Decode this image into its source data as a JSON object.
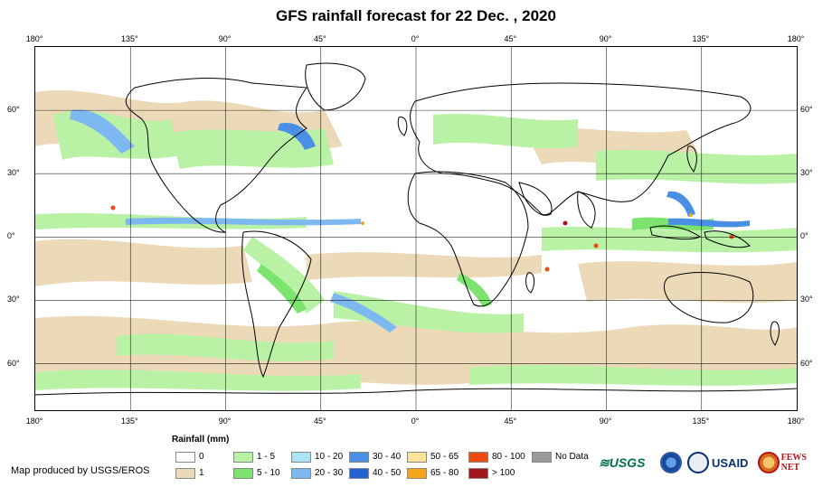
{
  "title": "GFS rainfall forecast for 22 Dec. , 2020",
  "map": {
    "longitude_labels": [
      "180°",
      "135°",
      "90°",
      "45°",
      "0°",
      "45°",
      "90°",
      "135°",
      "180°"
    ],
    "latitude_labels": [
      "60°",
      "30°",
      "0°",
      "30°",
      "60°"
    ],
    "longitude_values": [
      -180,
      -135,
      -90,
      -45,
      0,
      45,
      90,
      135,
      180
    ],
    "latitude_values": [
      60,
      30,
      0,
      -30,
      -60
    ],
    "lon_range": [
      -180,
      180
    ],
    "lat_range": [
      -82,
      90
    ],
    "grid": true
  },
  "legend": {
    "title": "Rainfall (mm)",
    "items": [
      {
        "label": "0",
        "color": "#ffffff"
      },
      {
        "label": "1",
        "color": "#ecd9b8"
      },
      {
        "label": "1 - 5",
        "color": "#b9f2a4"
      },
      {
        "label": "5 - 10",
        "color": "#7de36f"
      },
      {
        "label": "10 - 20",
        "color": "#aee3f5"
      },
      {
        "label": "20 - 30",
        "color": "#7db8f0"
      },
      {
        "label": "30 - 40",
        "color": "#4a8fe6"
      },
      {
        "label": "40 - 50",
        "color": "#2463d6"
      },
      {
        "label": "50 - 65",
        "color": "#fbe39a"
      },
      {
        "label": "65 - 80",
        "color": "#f7a51d"
      },
      {
        "label": "80 - 100",
        "color": "#f04a12"
      },
      {
        "label": "> 100",
        "color": "#a3161b"
      },
      {
        "label": "No Data",
        "color": "#9a9a9a"
      }
    ]
  },
  "credit": "Map produced by USGS/EROS",
  "logos": {
    "usgs": "≋USGS",
    "usaid": "USAID",
    "fews": "FEWS NET"
  }
}
